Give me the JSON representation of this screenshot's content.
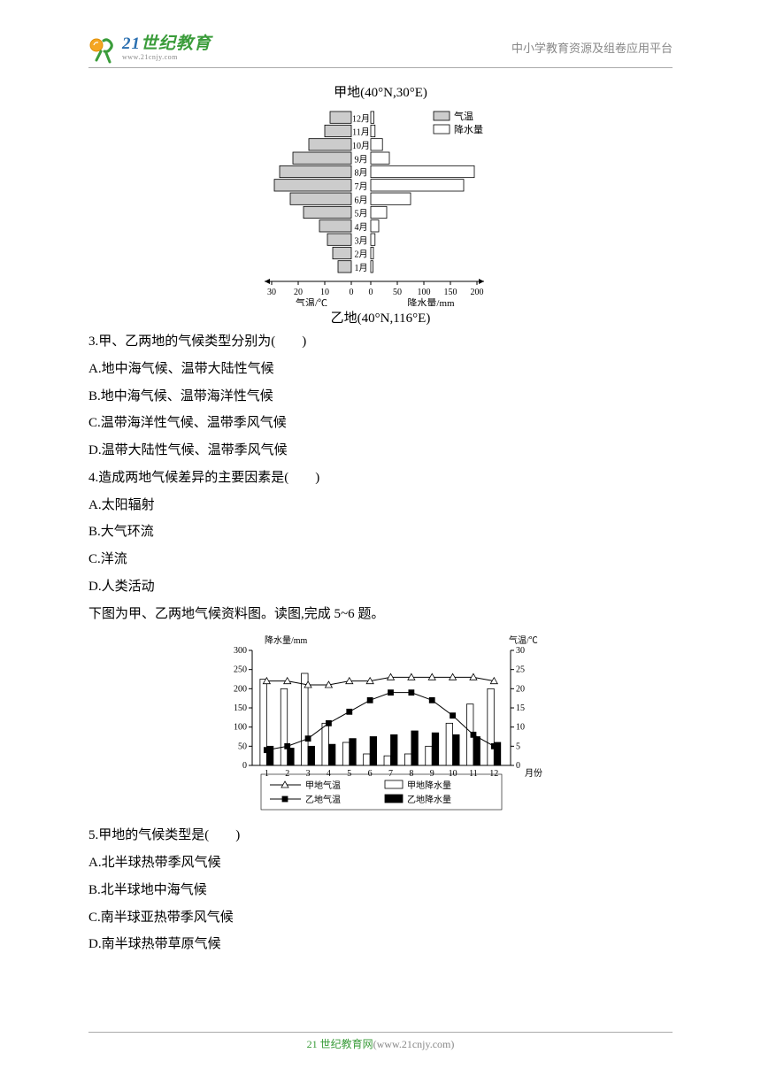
{
  "header": {
    "logo_main_pre": "21",
    "logo_main_post": "世纪教育",
    "logo_url": "www.21cnjy.com",
    "right_text": "中小学教育资源及组卷应用平台"
  },
  "chart1": {
    "caption_top": "甲地(40°N,30°E)",
    "caption_bottom": "乙地(40°N,116°E)",
    "legend": {
      "temp": "气温",
      "precip": "降水量"
    },
    "x_left_label": "气温/℃",
    "x_right_label": "降水量/mm",
    "left_ticks": [
      "30",
      "20",
      "10",
      "0"
    ],
    "right_ticks": [
      "0",
      "50",
      "100",
      "150",
      "200"
    ],
    "months": [
      "12月",
      "11月",
      "10月",
      "9月",
      "8月",
      "7月",
      "6月",
      "5月",
      "4月",
      "3月",
      "2月",
      "1月"
    ],
    "temp_values_top_to_bottom": [
      8,
      10,
      16,
      22,
      27,
      29,
      23,
      18,
      12,
      9,
      7,
      5
    ],
    "precip_values_top_to_bottom": [
      6,
      8,
      22,
      35,
      195,
      175,
      75,
      30,
      15,
      8,
      5,
      4
    ],
    "temp_fill": "#cccccc",
    "precip_fill": "#ffffff",
    "stroke": "#000000",
    "font_size": 10
  },
  "q3": {
    "stem": "3.甲、乙两地的气候类型分别为(　　)",
    "A": "A.地中海气候、温带大陆性气候",
    "B": "B.地中海气候、温带海洋性气候",
    "C": "C.温带海洋性气候、温带季风气候",
    "D": "D.温带大陆性气候、温带季风气候"
  },
  "q4": {
    "stem": "4.造成两地气候差异的主要因素是(　　)",
    "A": "A.太阳辐射",
    "B": "B.大气环流",
    "C": "C.洋流",
    "D": "D.人类活动"
  },
  "intro56": "下图为甲、乙两地气候资料图。读图,完成 5~6 题。",
  "chart2": {
    "y_left_label": "降水量/mm",
    "y_right_label": "气温/℃",
    "x_label": "月份",
    "left_ticks": [
      0,
      50,
      100,
      150,
      200,
      250,
      300
    ],
    "right_ticks": [
      0,
      5,
      10,
      15,
      20,
      25,
      30
    ],
    "months": [
      1,
      2,
      3,
      4,
      5,
      6,
      7,
      8,
      9,
      10,
      11,
      12
    ],
    "jia_temp": [
      22,
      22,
      21,
      21,
      22,
      22,
      23,
      23,
      23,
      23,
      23,
      22
    ],
    "yi_temp": [
      4,
      5,
      7,
      11,
      14,
      17,
      19,
      19,
      17,
      13,
      8,
      5
    ],
    "jia_precip": [
      225,
      200,
      240,
      110,
      60,
      30,
      25,
      30,
      50,
      110,
      160,
      200
    ],
    "yi_precip": [
      50,
      45,
      50,
      55,
      70,
      75,
      80,
      90,
      85,
      80,
      75,
      60
    ],
    "legend": {
      "jia_temp": "甲地气温",
      "jia_precip": "甲地降水量",
      "yi_temp": "乙地气温",
      "yi_precip": "乙地降水量"
    },
    "colors": {
      "jia_precip_fill": "#ffffff",
      "yi_precip_fill": "#000000",
      "stroke": "#000000"
    },
    "font_size": 10
  },
  "q5": {
    "stem": "5.甲地的气候类型是(　　)",
    "A": "A.北半球热带季风气候",
    "B": "B.北半球地中海气候",
    "C": "C.南半球亚热带季风气候",
    "D": "D.南半球热带草原气候"
  },
  "footer": {
    "brand": "21 世纪教育网",
    "url": "(www.21cnjy.com)"
  }
}
